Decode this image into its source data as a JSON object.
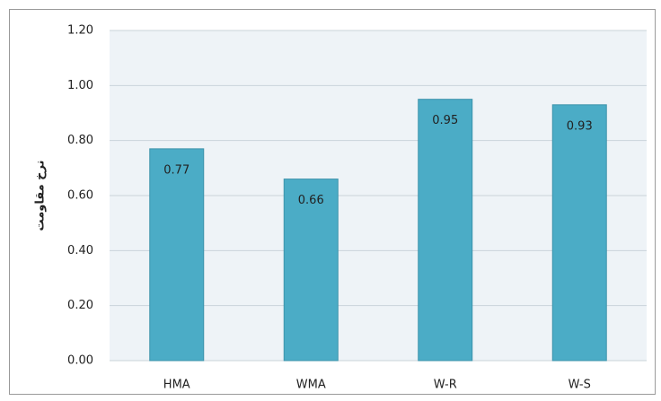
{
  "chart_data": {
    "type": "bar",
    "y_label": "نرخ مقاومت",
    "categories": [
      "HMA",
      "WMA",
      "W-R",
      "W-S"
    ],
    "values": [
      0.77,
      0.66,
      0.95,
      0.93
    ],
    "color": "#4bacc6",
    "ylim": [
      0,
      1.2
    ],
    "yticks": [
      {
        "value": 0,
        "label": "0.00"
      },
      {
        "value": 0.2,
        "label": "0.20"
      },
      {
        "value": 0.4,
        "label": "0.40"
      },
      {
        "value": 0.6,
        "label": "0.60"
      },
      {
        "value": 0.8,
        "label": "0.80"
      },
      {
        "value": 1,
        "label": "1.00"
      },
      {
        "value": 1.2,
        "label": "1.20"
      }
    ],
    "grid": true
  }
}
